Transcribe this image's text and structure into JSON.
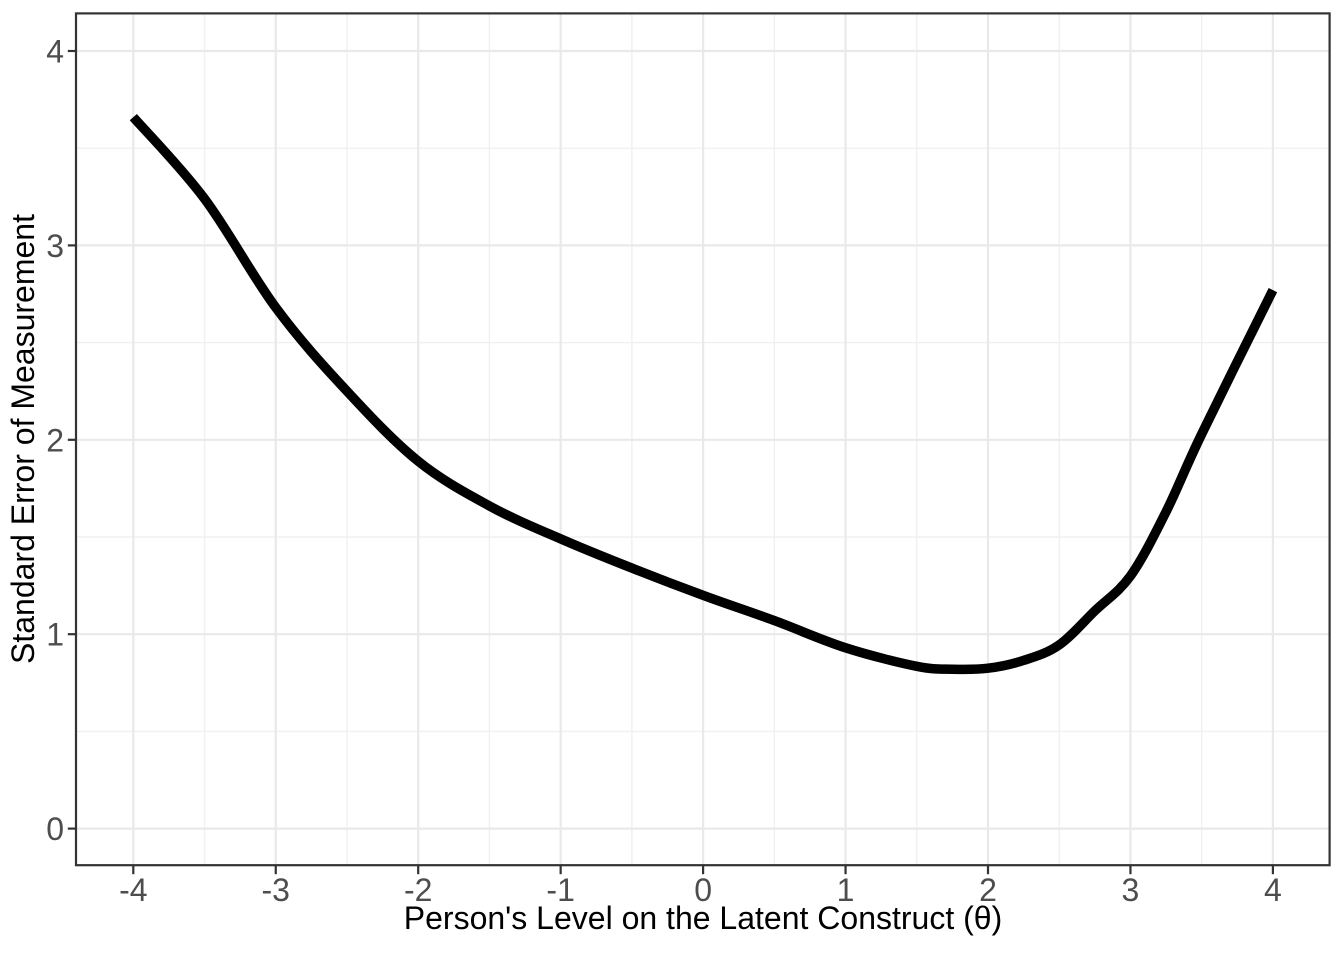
{
  "chart_data": {
    "type": "line",
    "title": "",
    "xlabel": "Person's Level on the Latent Construct (θ)",
    "ylabel": "Standard Error of Measurement",
    "x_ticks": [
      -4,
      -3,
      -2,
      -1,
      0,
      1,
      2,
      3,
      4
    ],
    "x_tick_labels": [
      "-4",
      "-3",
      "-2",
      "-1",
      "0",
      "1",
      "2",
      "3",
      "4"
    ],
    "y_ticks": [
      0,
      1,
      2,
      3,
      4
    ],
    "y_tick_labels": [
      "0",
      "1",
      "2",
      "3",
      "4"
    ],
    "x_minor_gridlines": [
      -3.5,
      -2.5,
      -1.5,
      -0.5,
      0.5,
      1.5,
      2.5,
      3.5
    ],
    "y_minor_gridlines": [
      0.5,
      1.5,
      2.5,
      3.5
    ],
    "xlim": [
      -4.4,
      4.4
    ],
    "ylim": [
      -0.19,
      4.19
    ],
    "grid": "major-and-minor",
    "legend": "none",
    "series": [
      {
        "name": "Standard Error of Measurement",
        "color": "#000000",
        "stroke_width": 9.5,
        "points": [
          [
            -4.0,
            3.66
          ],
          [
            -3.5,
            3.24
          ],
          [
            -3.0,
            2.68
          ],
          [
            -2.5,
            2.25
          ],
          [
            -2.0,
            1.89
          ],
          [
            -1.5,
            1.66
          ],
          [
            -1.0,
            1.49
          ],
          [
            -0.5,
            1.34
          ],
          [
            0.0,
            1.2
          ],
          [
            0.5,
            1.07
          ],
          [
            1.0,
            0.93
          ],
          [
            1.5,
            0.835
          ],
          [
            1.75,
            0.82
          ],
          [
            2.0,
            0.825
          ],
          [
            2.25,
            0.865
          ],
          [
            2.5,
            0.945
          ],
          [
            2.75,
            1.12
          ],
          [
            3.0,
            1.3
          ],
          [
            3.25,
            1.63
          ],
          [
            3.5,
            2.03
          ],
          [
            4.0,
            2.77
          ]
        ]
      }
    ],
    "annotations": {
      "curve_minimum": {
        "x": 1.8,
        "y": 0.82
      }
    }
  },
  "style": {
    "background": "#FFFFFF",
    "panel_background": "#FFFFFF",
    "panel_border_color": "#333333",
    "grid_major_color": "#E9E9E9",
    "grid_minor_color": "#F0F0F0",
    "tick_mark_color": "#333333",
    "tick_label_color": "#4D4D4D",
    "axis_title_color": "#000000",
    "line_color": "#000000"
  }
}
